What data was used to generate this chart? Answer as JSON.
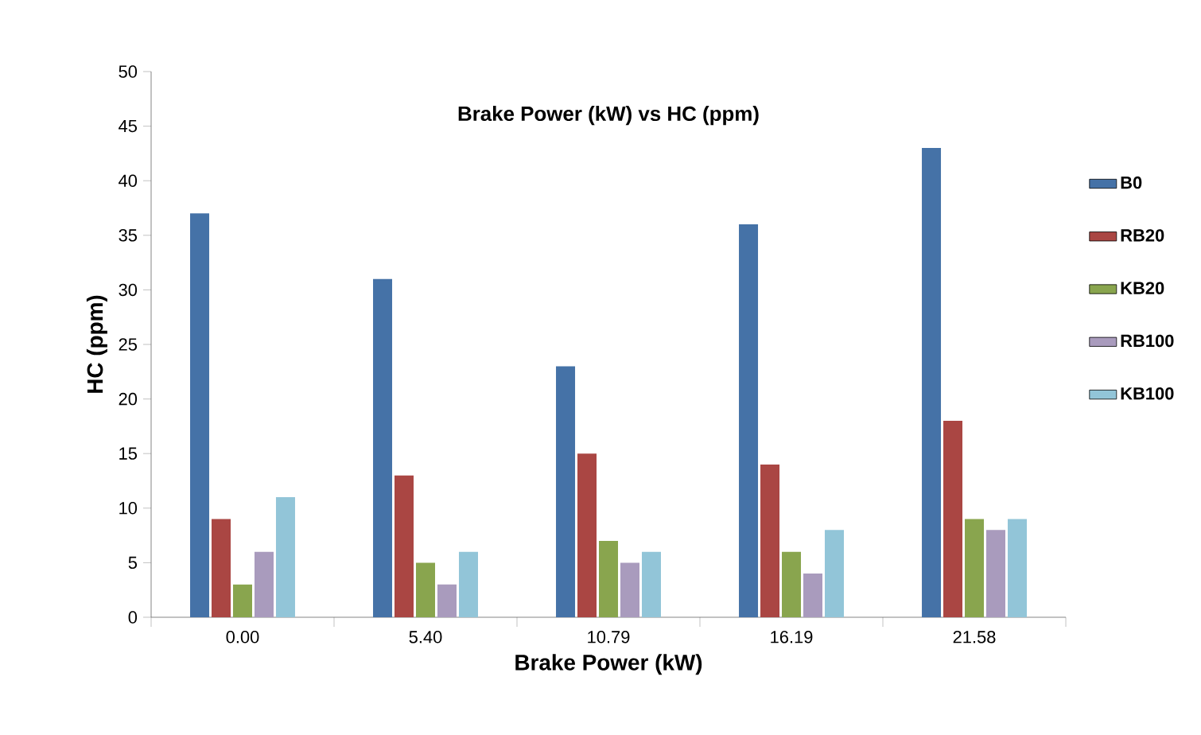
{
  "chart_data": {
    "type": "bar",
    "title": "Brake Power (kW) vs HC (ppm)",
    "xlabel": "Brake Power (kW)",
    "ylabel": "HC  (ppm)",
    "categories": [
      "0.00",
      "5.40",
      "10.79",
      "16.19",
      "21.58"
    ],
    "series": [
      {
        "name": "B0",
        "color": "#4572a7",
        "values": [
          37,
          31,
          23,
          36,
          43
        ]
      },
      {
        "name": "RB20",
        "color": "#aa4643",
        "values": [
          9,
          13,
          15,
          14,
          18
        ]
      },
      {
        "name": "KB20",
        "color": "#89a54e",
        "values": [
          3,
          5,
          7,
          6,
          9
        ]
      },
      {
        "name": "RB100",
        "color": "#a99bbd",
        "values": [
          6,
          3,
          5,
          4,
          8
        ]
      },
      {
        "name": "KB100",
        "color": "#92c5d8",
        "values": [
          11,
          6,
          6,
          8,
          9
        ]
      }
    ],
    "ylim": [
      0,
      50
    ],
    "yticks": [
      0,
      5,
      10,
      15,
      20,
      25,
      30,
      35,
      40,
      45,
      50
    ],
    "legend": "right",
    "grid": false
  }
}
